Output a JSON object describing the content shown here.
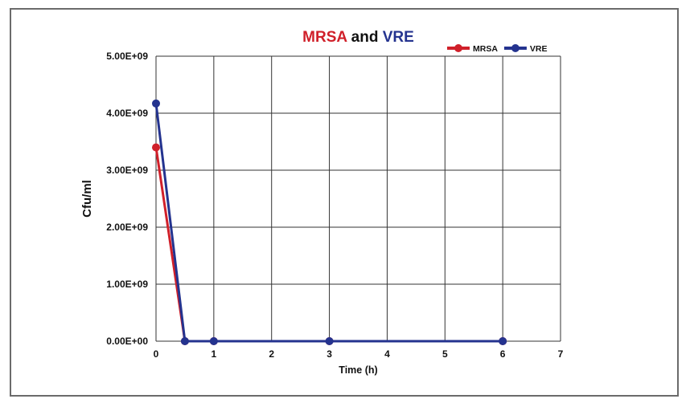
{
  "chart_data": {
    "type": "line",
    "title_parts": [
      {
        "text": "MRSA",
        "color": "#d0202a"
      },
      {
        "text": " and ",
        "color": "#111111"
      },
      {
        "text": "VRE",
        "color": "#24338f"
      }
    ],
    "xlabel": "Time (h)",
    "ylabel": "Cfu/ml",
    "xlim": [
      0,
      7
    ],
    "ylim": [
      0,
      5000000000
    ],
    "xticks": [
      "0",
      "1",
      "2",
      "3",
      "4",
      "5",
      "6",
      "7"
    ],
    "yticks": [
      "0.00E+00",
      "1.00E+09",
      "2.00E+09",
      "3.00E+09",
      "4.00E+09",
      "5.00E+09"
    ],
    "grid": true,
    "legend_position": "top-right",
    "x": [
      0,
      0.5,
      1,
      3,
      6
    ],
    "series": [
      {
        "name": "MRSA",
        "color": "#d0202a",
        "values": [
          3400000000,
          0,
          0,
          0,
          0
        ]
      },
      {
        "name": "VRE",
        "color": "#24338f",
        "values": [
          4170000000,
          0,
          0,
          0,
          0
        ]
      }
    ]
  }
}
